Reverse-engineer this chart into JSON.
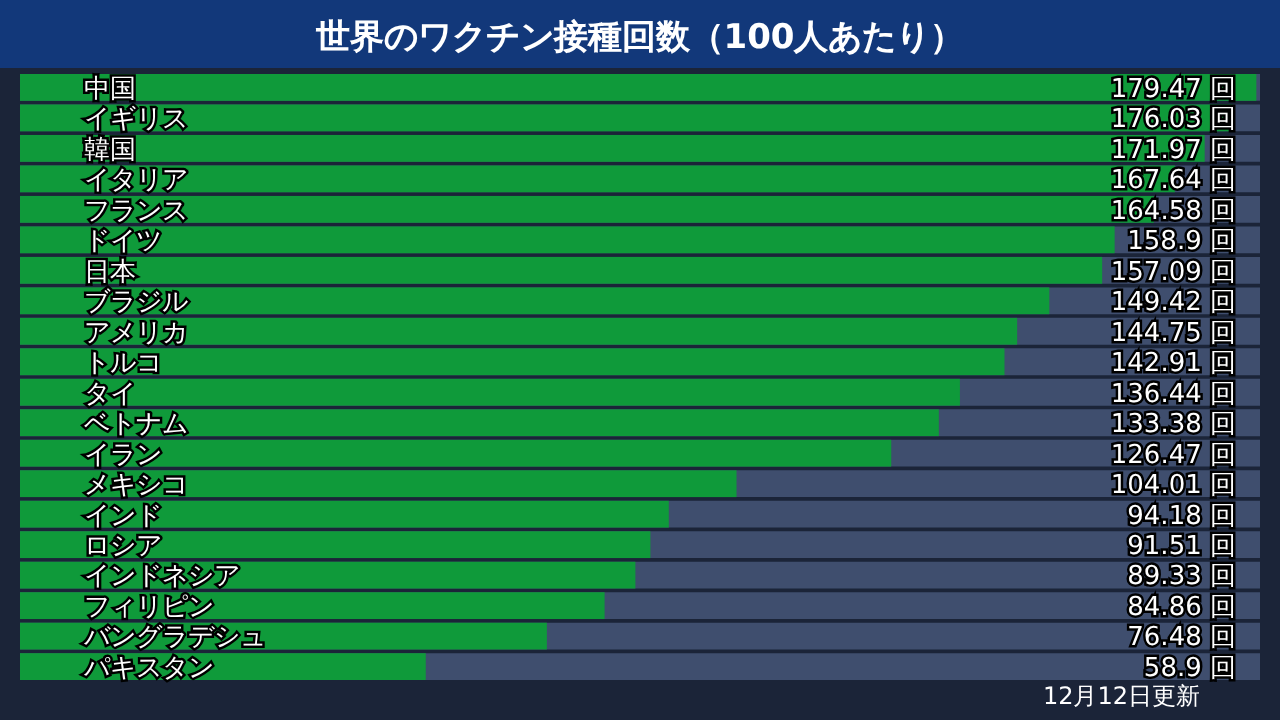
{
  "chart_data": {
    "type": "bar",
    "orientation": "horizontal",
    "title": "世界のワクチン接種回数（100人あたり）",
    "categories": [
      "中国",
      "イギリス",
      "韓国",
      "イタリア",
      "フランス",
      "ドイツ",
      "日本",
      "ブラジル",
      "アメリカ",
      "トルコ",
      "タイ",
      "ベトナム",
      "イラン",
      "メキシコ",
      "インド",
      "ロシア",
      "インドネシア",
      "フィリピン",
      "バングラデシュ",
      "パキスタン"
    ],
    "values": [
      179.47,
      176.03,
      171.97,
      167.64,
      164.58,
      158.9,
      157.09,
      149.42,
      144.75,
      142.91,
      136.44,
      133.38,
      126.47,
      104.01,
      94.18,
      91.51,
      89.33,
      84.86,
      76.48,
      58.9
    ],
    "value_labels": [
      "179.47 回",
      "176.03 回",
      "171.97 回",
      "167.64 回",
      "164.58 回",
      "158.9 回",
      "157.09 回",
      "149.42 回",
      "144.75 回",
      "142.91 回",
      "136.44 回",
      "133.38 回",
      "126.47 回",
      "104.01 回",
      "94.18 回",
      "91.51 回",
      "89.33 回",
      "84.86 回",
      "76.48 回",
      "58.9 回"
    ],
    "color": "#0f9a3a",
    "bands": [
      {
        "axis": "x",
        "from": 0,
        "to": 180,
        "color": "#3f4e6e"
      }
    ],
    "annotations": [
      "12月12日更新"
    ]
  }
}
